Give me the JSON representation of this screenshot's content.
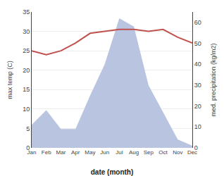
{
  "chart_data": {
    "type": "line",
    "xlabel": "date (month)",
    "ylabel": "max temp (C)",
    "y2label": "med. precipitation (kg/m2)",
    "categories": [
      "Jan",
      "Feb",
      "Mar",
      "Apr",
      "May",
      "Jun",
      "Jul",
      "Aug",
      "Sep",
      "Oct",
      "Nov",
      "Dec"
    ],
    "series": [
      {
        "type": "line",
        "color": "#c0514d",
        "values": [
          25,
          24,
          25,
          27,
          29.5,
          30,
          30.5,
          30.5,
          30,
          30.5,
          28.5,
          27
        ]
      },
      {
        "type": "area",
        "color": "#b8c4e0",
        "axis": "y2",
        "values": [
          11,
          18,
          9,
          9,
          25,
          40,
          62,
          58,
          30,
          17,
          4,
          1
        ]
      }
    ],
    "ylim": [
      0,
      35
    ],
    "yticks": [
      0,
      5,
      10,
      15,
      20,
      25,
      30,
      35
    ],
    "y2lim": [
      0,
      65
    ],
    "y2ticks": [
      0,
      10,
      20,
      30,
      40,
      50,
      60
    ],
    "grid": true
  }
}
